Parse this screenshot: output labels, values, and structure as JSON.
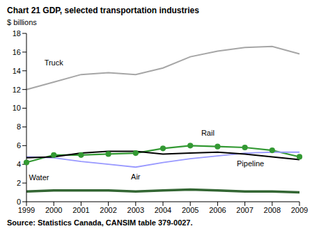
{
  "chart_data": {
    "type": "line",
    "title": "Chart 21 GDP, selected transportation industries",
    "y_label": "$ billions",
    "source": "Source: Statistics Canada, CANSIM table 379-0027.",
    "categories": [
      "1999",
      "2000",
      "2001",
      "2002",
      "2003",
      "2004",
      "2005",
      "2006",
      "2007",
      "2008",
      "2009"
    ],
    "series": [
      {
        "name": "Truck",
        "color": "#a6a6a6",
        "marker": "none",
        "values": [
          12.0,
          12.8,
          13.6,
          13.8,
          13.6,
          14.3,
          15.5,
          16.1,
          16.5,
          16.6,
          15.8
        ]
      },
      {
        "name": "Rail",
        "color": "#339933",
        "marker": "circle",
        "values": [
          4.2,
          5.0,
          5.0,
          5.1,
          5.2,
          5.7,
          6.0,
          5.9,
          5.8,
          5.5,
          4.8
        ]
      },
      {
        "name": "Air",
        "color": "#9999ff",
        "marker": "none",
        "values": [
          4.8,
          4.7,
          4.3,
          4.0,
          3.7,
          4.2,
          4.6,
          4.9,
          5.2,
          5.3,
          5.3
        ]
      },
      {
        "name": "Pipeline",
        "color": "#000000",
        "marker": "none",
        "values": [
          4.7,
          4.8,
          5.2,
          5.4,
          5.4,
          5.1,
          5.2,
          5.3,
          5.1,
          4.8,
          4.5
        ]
      },
      {
        "name": "Water",
        "color": "#336633",
        "marker": "none",
        "values": [
          1.1,
          1.2,
          1.2,
          1.2,
          1.1,
          1.2,
          1.3,
          1.2,
          1.1,
          1.1,
          1.0
        ]
      }
    ],
    "ylim": [
      0,
      18
    ],
    "yticks": [
      0,
      2,
      4,
      6,
      8,
      10,
      12,
      14,
      16,
      18
    ],
    "grid": false,
    "legend": "none"
  }
}
